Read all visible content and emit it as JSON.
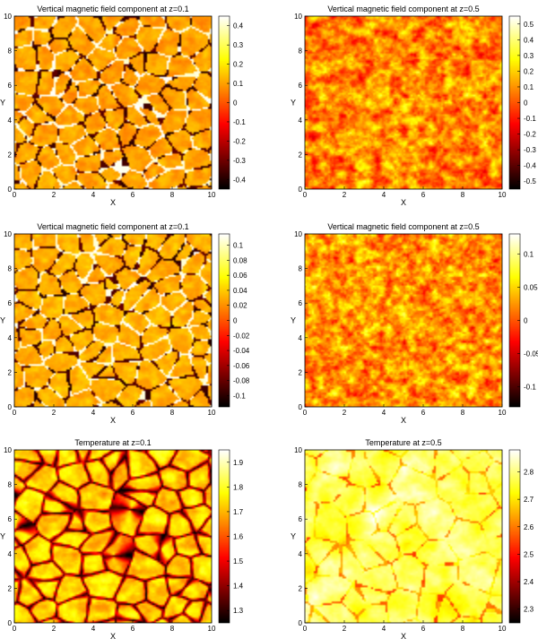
{
  "chart_data": [
    {
      "type": "heatmap",
      "title": "Vertical magnetic field component at z=0.1",
      "xlabel": "X",
      "ylabel": "Y",
      "xlim": [
        0,
        10
      ],
      "ylim": [
        0,
        10
      ],
      "xticks": [
        "0",
        "2",
        "4",
        "6",
        "8",
        "10"
      ],
      "yticks": [
        "0",
        "2",
        "4",
        "6",
        "8",
        "10"
      ],
      "colorbar_ticks": [
        "0.4",
        "0.3",
        "0.2",
        "0.1",
        "0",
        "-0.1",
        "-0.2",
        "-0.3",
        "-0.4"
      ],
      "colorbar_range": [
        -0.45,
        0.45
      ],
      "colormap": "hot",
      "pattern": "cells",
      "scale": 9,
      "base_level": 0.62
    },
    {
      "type": "heatmap",
      "title": "Vertical magnetic field component at z=0.5",
      "xlabel": "X",
      "ylabel": "Y",
      "xlim": [
        0,
        10
      ],
      "ylim": [
        0,
        10
      ],
      "xticks": [
        "0",
        "2",
        "4",
        "6",
        "8",
        "10"
      ],
      "yticks": [
        "0",
        "2",
        "4",
        "6",
        "8",
        "10"
      ],
      "colorbar_ticks": [
        "0.5",
        "0.4",
        "0.3",
        "0.2",
        "0.1",
        "0",
        "-0.1",
        "-0.2",
        "-0.3",
        "-0.4",
        "-0.5"
      ],
      "colorbar_range": [
        -0.55,
        0.55
      ],
      "colormap": "hot",
      "pattern": "turbulent",
      "scale": 22,
      "base_level": 0.6
    },
    {
      "type": "heatmap",
      "title": "Vertical magnetic field component at z=0.1",
      "xlabel": "X",
      "ylabel": "Y",
      "xlim": [
        0,
        10
      ],
      "ylim": [
        0,
        10
      ],
      "xticks": [
        "0",
        "2",
        "4",
        "6",
        "8",
        "10"
      ],
      "yticks": [
        "0",
        "2",
        "4",
        "6",
        "8",
        "10"
      ],
      "colorbar_ticks": [
        "0.1",
        "0.08",
        "0.06",
        "0.04",
        "0.02",
        "0",
        "-0.02",
        "-0.04",
        "-0.06",
        "-0.08",
        "-0.1"
      ],
      "colorbar_range": [
        -0.115,
        0.115
      ],
      "colormap": "hot",
      "pattern": "cells",
      "scale": 9,
      "base_level": 0.64
    },
    {
      "type": "heatmap",
      "title": "Vertical magnetic field component at z=0.5",
      "xlabel": "X",
      "ylabel": "Y",
      "xlim": [
        0,
        10
      ],
      "ylim": [
        0,
        10
      ],
      "xticks": [
        "0",
        "2",
        "4",
        "6",
        "8",
        "10"
      ],
      "yticks": [
        "0",
        "2",
        "4",
        "6",
        "8",
        "10"
      ],
      "colorbar_ticks": [
        "0.1",
        "0.05",
        "0",
        "-0.05",
        "-0.1"
      ],
      "colorbar_range": [
        -0.13,
        0.13
      ],
      "colormap": "hot",
      "pattern": "turbulent",
      "scale": 26,
      "base_level": 0.62
    },
    {
      "type": "heatmap",
      "title": "Temperature at z=0.1",
      "xlabel": "X",
      "ylabel": "Y",
      "xlim": [
        0,
        10
      ],
      "ylim": [
        0,
        10
      ],
      "xticks": [
        "0",
        "2",
        "4",
        "6",
        "8",
        "10"
      ],
      "yticks": [
        "0",
        "2",
        "4",
        "6",
        "8",
        "10"
      ],
      "colorbar_ticks": [
        "1.9",
        "1.8",
        "1.7",
        "1.6",
        "1.5",
        "1.4",
        "1.3"
      ],
      "colorbar_range": [
        1.25,
        1.95
      ],
      "colormap": "hot",
      "pattern": "granules",
      "scale": 8,
      "base_level": 0.7
    },
    {
      "type": "heatmap",
      "title": "Temperature at z=0.5",
      "xlabel": "X",
      "ylabel": "Y",
      "xlim": [
        0,
        10
      ],
      "ylim": [
        0,
        10
      ],
      "xticks": [
        "0",
        "2",
        "4",
        "6",
        "8",
        "10"
      ],
      "yticks": [
        "0",
        "2",
        "4",
        "6",
        "8",
        "10"
      ],
      "colorbar_ticks": [
        "2.8",
        "2.7",
        "2.6",
        "2.5",
        "2.4",
        "2.3"
      ],
      "colorbar_range": [
        2.25,
        2.88
      ],
      "colormap": "hot",
      "pattern": "plumes",
      "scale": 4,
      "base_level": 0.85
    }
  ]
}
